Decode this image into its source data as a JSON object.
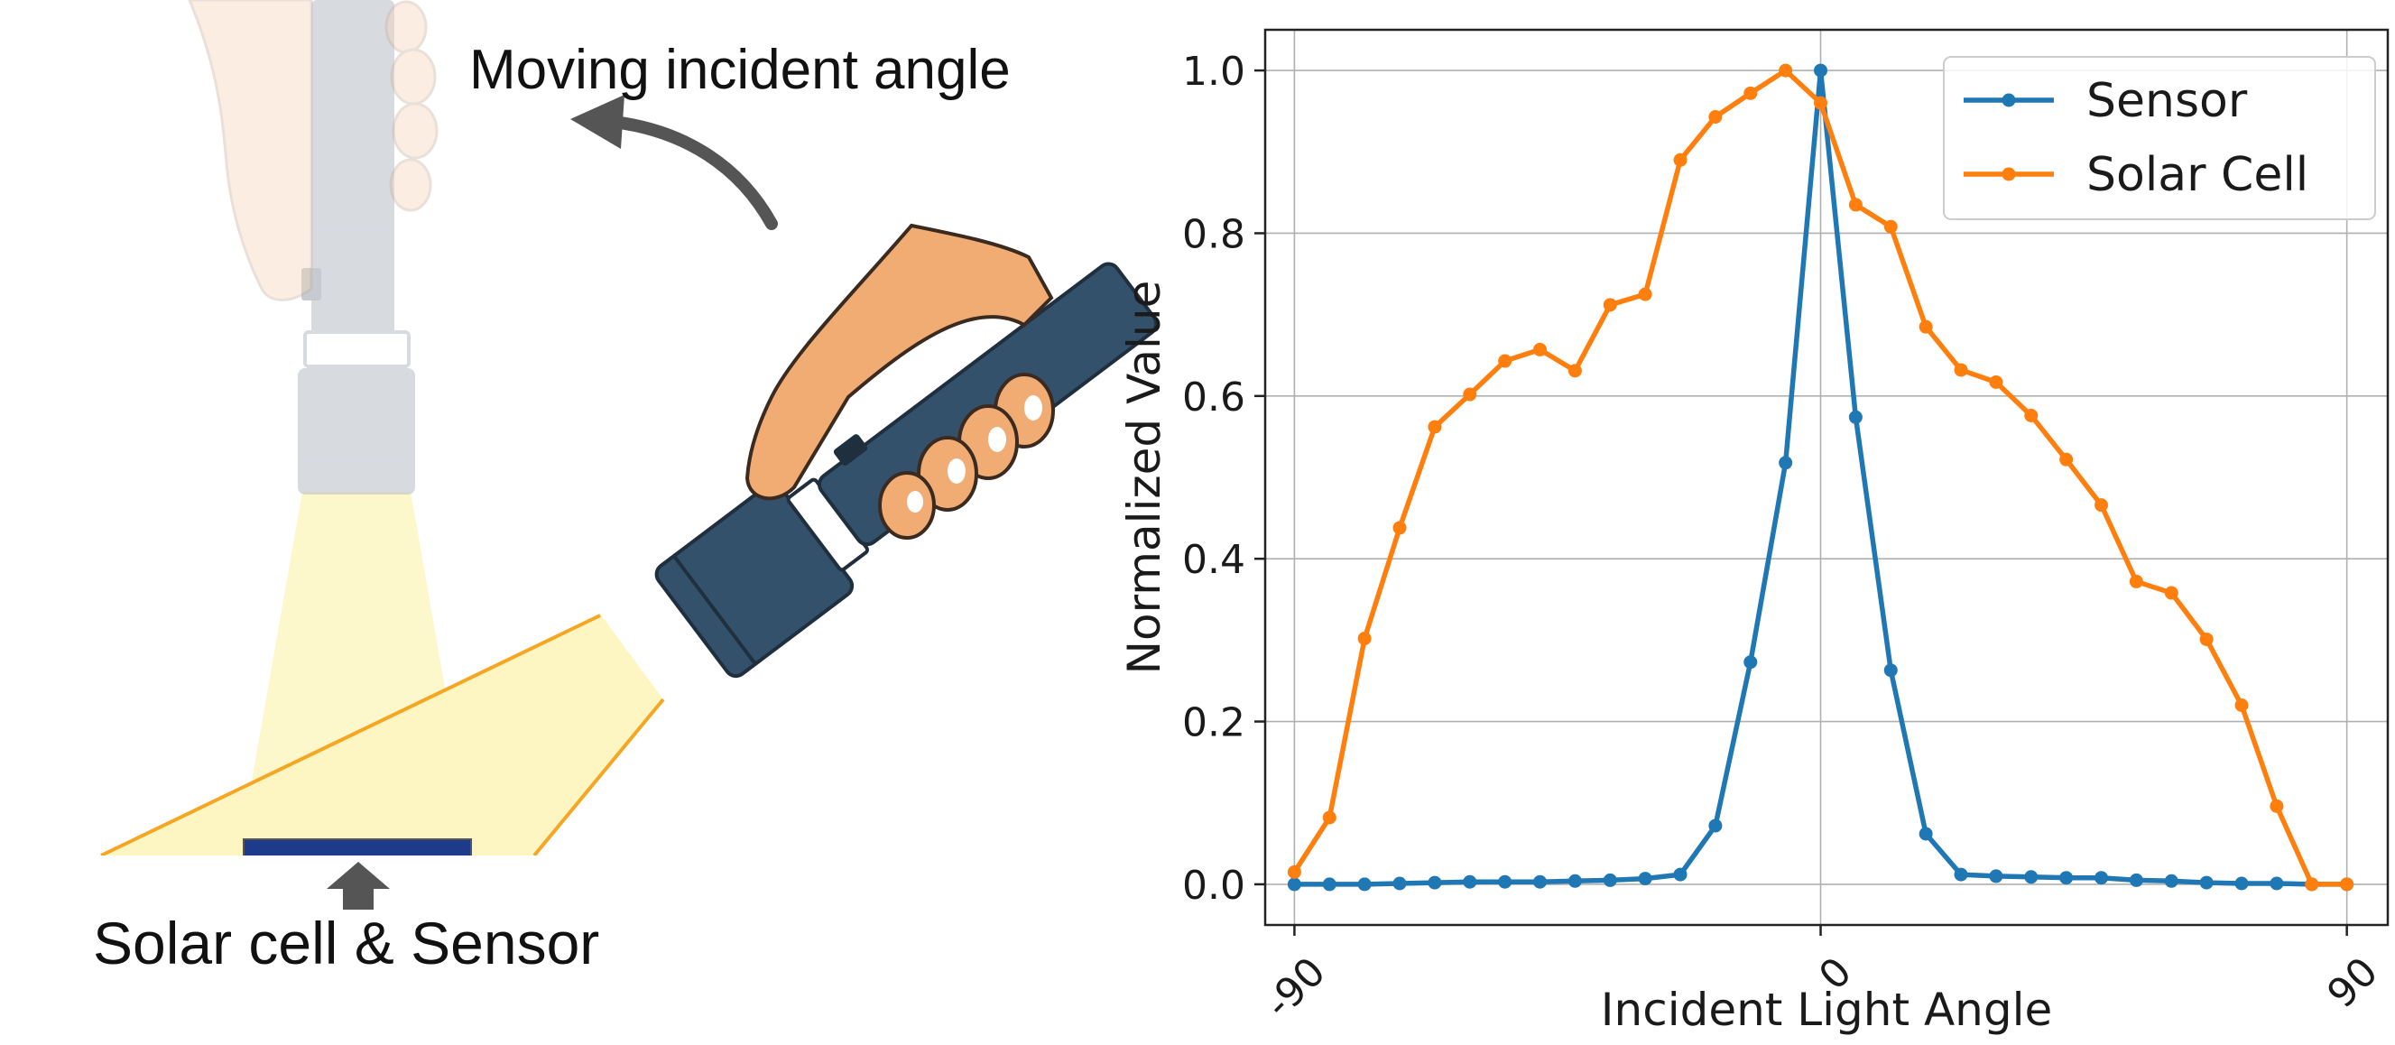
{
  "illustration": {
    "top_label": "Moving incident angle",
    "bottom_label": "Solar cell & Sensor",
    "colors": {
      "flashlight_body": "#34516b",
      "hand": "#f0ac73",
      "light_beam": "#fdf6c3",
      "beam_edge": "#f5a623",
      "faded_flashlight": "#c9cdd3",
      "solar_cell": "#1e3a8a",
      "arrow": "#555555"
    },
    "icons": [
      "flashlight-icon",
      "hand-icon",
      "curved-arrow-icon",
      "up-arrow-icon",
      "solar-cell-icon"
    ]
  },
  "chart_data": {
    "type": "line",
    "title": "",
    "xlabel": "Incident Light Angle",
    "ylabel": "Normalized Value",
    "xlim": [
      -95,
      97
    ],
    "ylim": [
      -0.05,
      1.05
    ],
    "xticks": [
      -90,
      0,
      90
    ],
    "xtick_labels": [
      "-90",
      "0",
      "90"
    ],
    "yticks": [
      0.0,
      0.2,
      0.4,
      0.6,
      0.8,
      1.0
    ],
    "ytick_labels": [
      "0.0",
      "0.2",
      "0.4",
      "0.6",
      "0.8",
      "1.0"
    ],
    "grid": true,
    "legend_position": "top-right",
    "series": [
      {
        "name": "Sensor",
        "color": "#1f77b4",
        "x": [
          -90,
          -84,
          -78,
          -72,
          -66,
          -60,
          -54,
          -48,
          -42,
          -36,
          -30,
          -24,
          -18,
          -12,
          -6,
          0,
          6,
          12,
          18,
          24,
          30,
          36,
          42,
          48,
          54,
          60,
          66,
          72,
          78,
          84,
          90
        ],
        "values": [
          0.0,
          0.0,
          0.0,
          0.001,
          0.002,
          0.003,
          0.003,
          0.003,
          0.004,
          0.005,
          0.007,
          0.012,
          0.072,
          0.273,
          0.518,
          1.0,
          0.574,
          0.263,
          0.062,
          0.012,
          0.01,
          0.009,
          0.008,
          0.008,
          0.005,
          0.004,
          0.002,
          0.001,
          0.001,
          0.0,
          0.0
        ]
      },
      {
        "name": "Solar Cell",
        "color": "#ff7f0e",
        "x": [
          -90,
          -84,
          -78,
          -72,
          -66,
          -60,
          -54,
          -48,
          -42,
          -36,
          -30,
          -24,
          -18,
          -12,
          -6,
          0,
          6,
          12,
          18,
          24,
          30,
          36,
          42,
          48,
          54,
          60,
          66,
          72,
          78,
          84,
          90
        ],
        "values": [
          0.015,
          0.082,
          0.302,
          0.438,
          0.562,
          0.602,
          0.643,
          0.657,
          0.631,
          0.712,
          0.725,
          0.89,
          0.943,
          0.972,
          1.0,
          0.96,
          0.835,
          0.808,
          0.685,
          0.632,
          0.617,
          0.576,
          0.522,
          0.466,
          0.372,
          0.358,
          0.301,
          0.22,
          0.096,
          0.0,
          0.0
        ]
      }
    ]
  }
}
